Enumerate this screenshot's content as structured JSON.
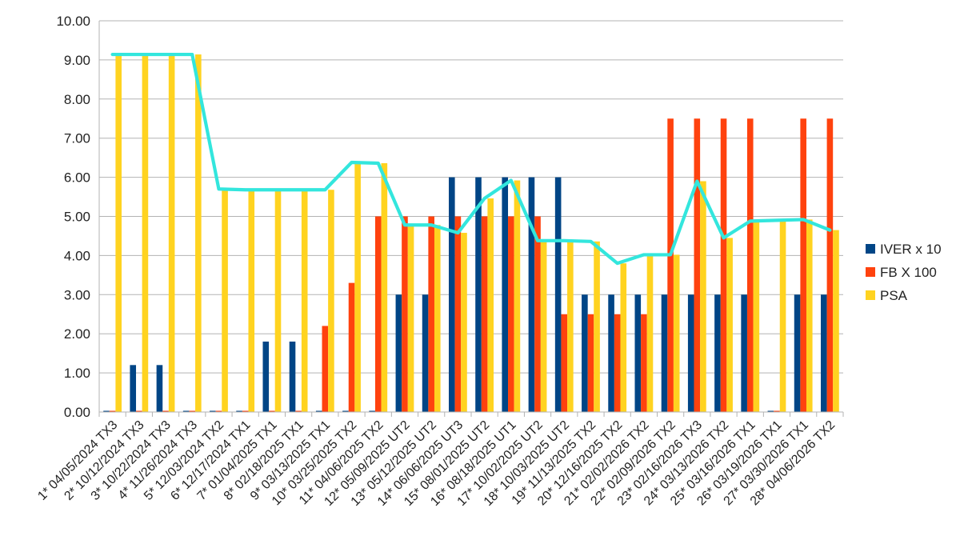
{
  "chart_data": {
    "type": "bar",
    "categories": [
      "1* 04/05/2024 TX3",
      "2* 10/12/2024 TX3",
      "3* 10/22/2024 TX3",
      "4* 11/26/2024 TX3",
      "5* 12/03/2024 TX2",
      "6* 12/17/2024 TX1",
      "7* 01/04/2025 TX1",
      "8* 02/18/2025 TX1",
      "9* 03/13/2025 TX1",
      "10* 03/25/2025 TX2",
      "11* 04/06/2025 TX2",
      "12* 05/09/2025 UT2",
      "13* 05/12/2025 UT2",
      "14* 06/06/2025 UT3",
      "15* 08/01/2025 UT2",
      "16* 08/18/2025 UT1",
      "17* 10/02/2025 UT2",
      "18* 10/03/2025 UT2",
      "19* 11/13/2025 TX2",
      "20* 12/16/2025 TX2",
      "21* 02/02/2026 TX2",
      "22* 02/09/2026 TX2",
      "23* 02/16/2026 TX3",
      "24* 03/13/2026 TX2",
      "25* 03/16/2026 TX1",
      "26* 03/19/2026 TX1",
      "27* 03/30/2026 TX1",
      "28* 04/06/2026 TX2"
    ],
    "series": [
      {
        "name": "IVER x 10",
        "color": "#004586",
        "values": [
          0,
          1.2,
          1.2,
          0,
          0,
          0,
          1.8,
          1.8,
          0,
          0,
          0,
          3,
          3,
          6,
          6,
          6,
          6,
          6,
          3,
          3,
          3,
          3,
          3,
          3,
          3,
          0,
          3,
          3
        ]
      },
      {
        "name": "FB X 100",
        "color": "#ff420e",
        "values": [
          0,
          0,
          0,
          0,
          0,
          0,
          0,
          0,
          2.2,
          3.3,
          5,
          5,
          5,
          5,
          5,
          5,
          5,
          2.5,
          2.5,
          2.5,
          2.5,
          7.5,
          7.5,
          7.5,
          7.5,
          0,
          7.5,
          7.5
        ]
      },
      {
        "name": "PSA",
        "color": "#ffd320",
        "values": [
          9.14,
          9.14,
          9.14,
          9.14,
          5.7,
          5.68,
          5.68,
          5.68,
          5.68,
          6.38,
          6.36,
          4.78,
          4.78,
          4.58,
          5.46,
          5.92,
          4.38,
          4.38,
          4.36,
          3.8,
          4.02,
          4.02,
          5.9,
          4.45,
          4.88,
          4.9,
          4.92,
          4.65
        ]
      }
    ],
    "line_overlay": {
      "series": "PSA",
      "color": "#33e6dd"
    },
    "ylim": [
      0,
      10
    ],
    "yticks": [
      "0.00",
      "1.00",
      "2.00",
      "3.00",
      "4.00",
      "5.00",
      "6.00",
      "7.00",
      "8.00",
      "9.00",
      "10.00"
    ],
    "grid": true,
    "legend": "right",
    "title": "",
    "xlabel": "",
    "ylabel": ""
  }
}
